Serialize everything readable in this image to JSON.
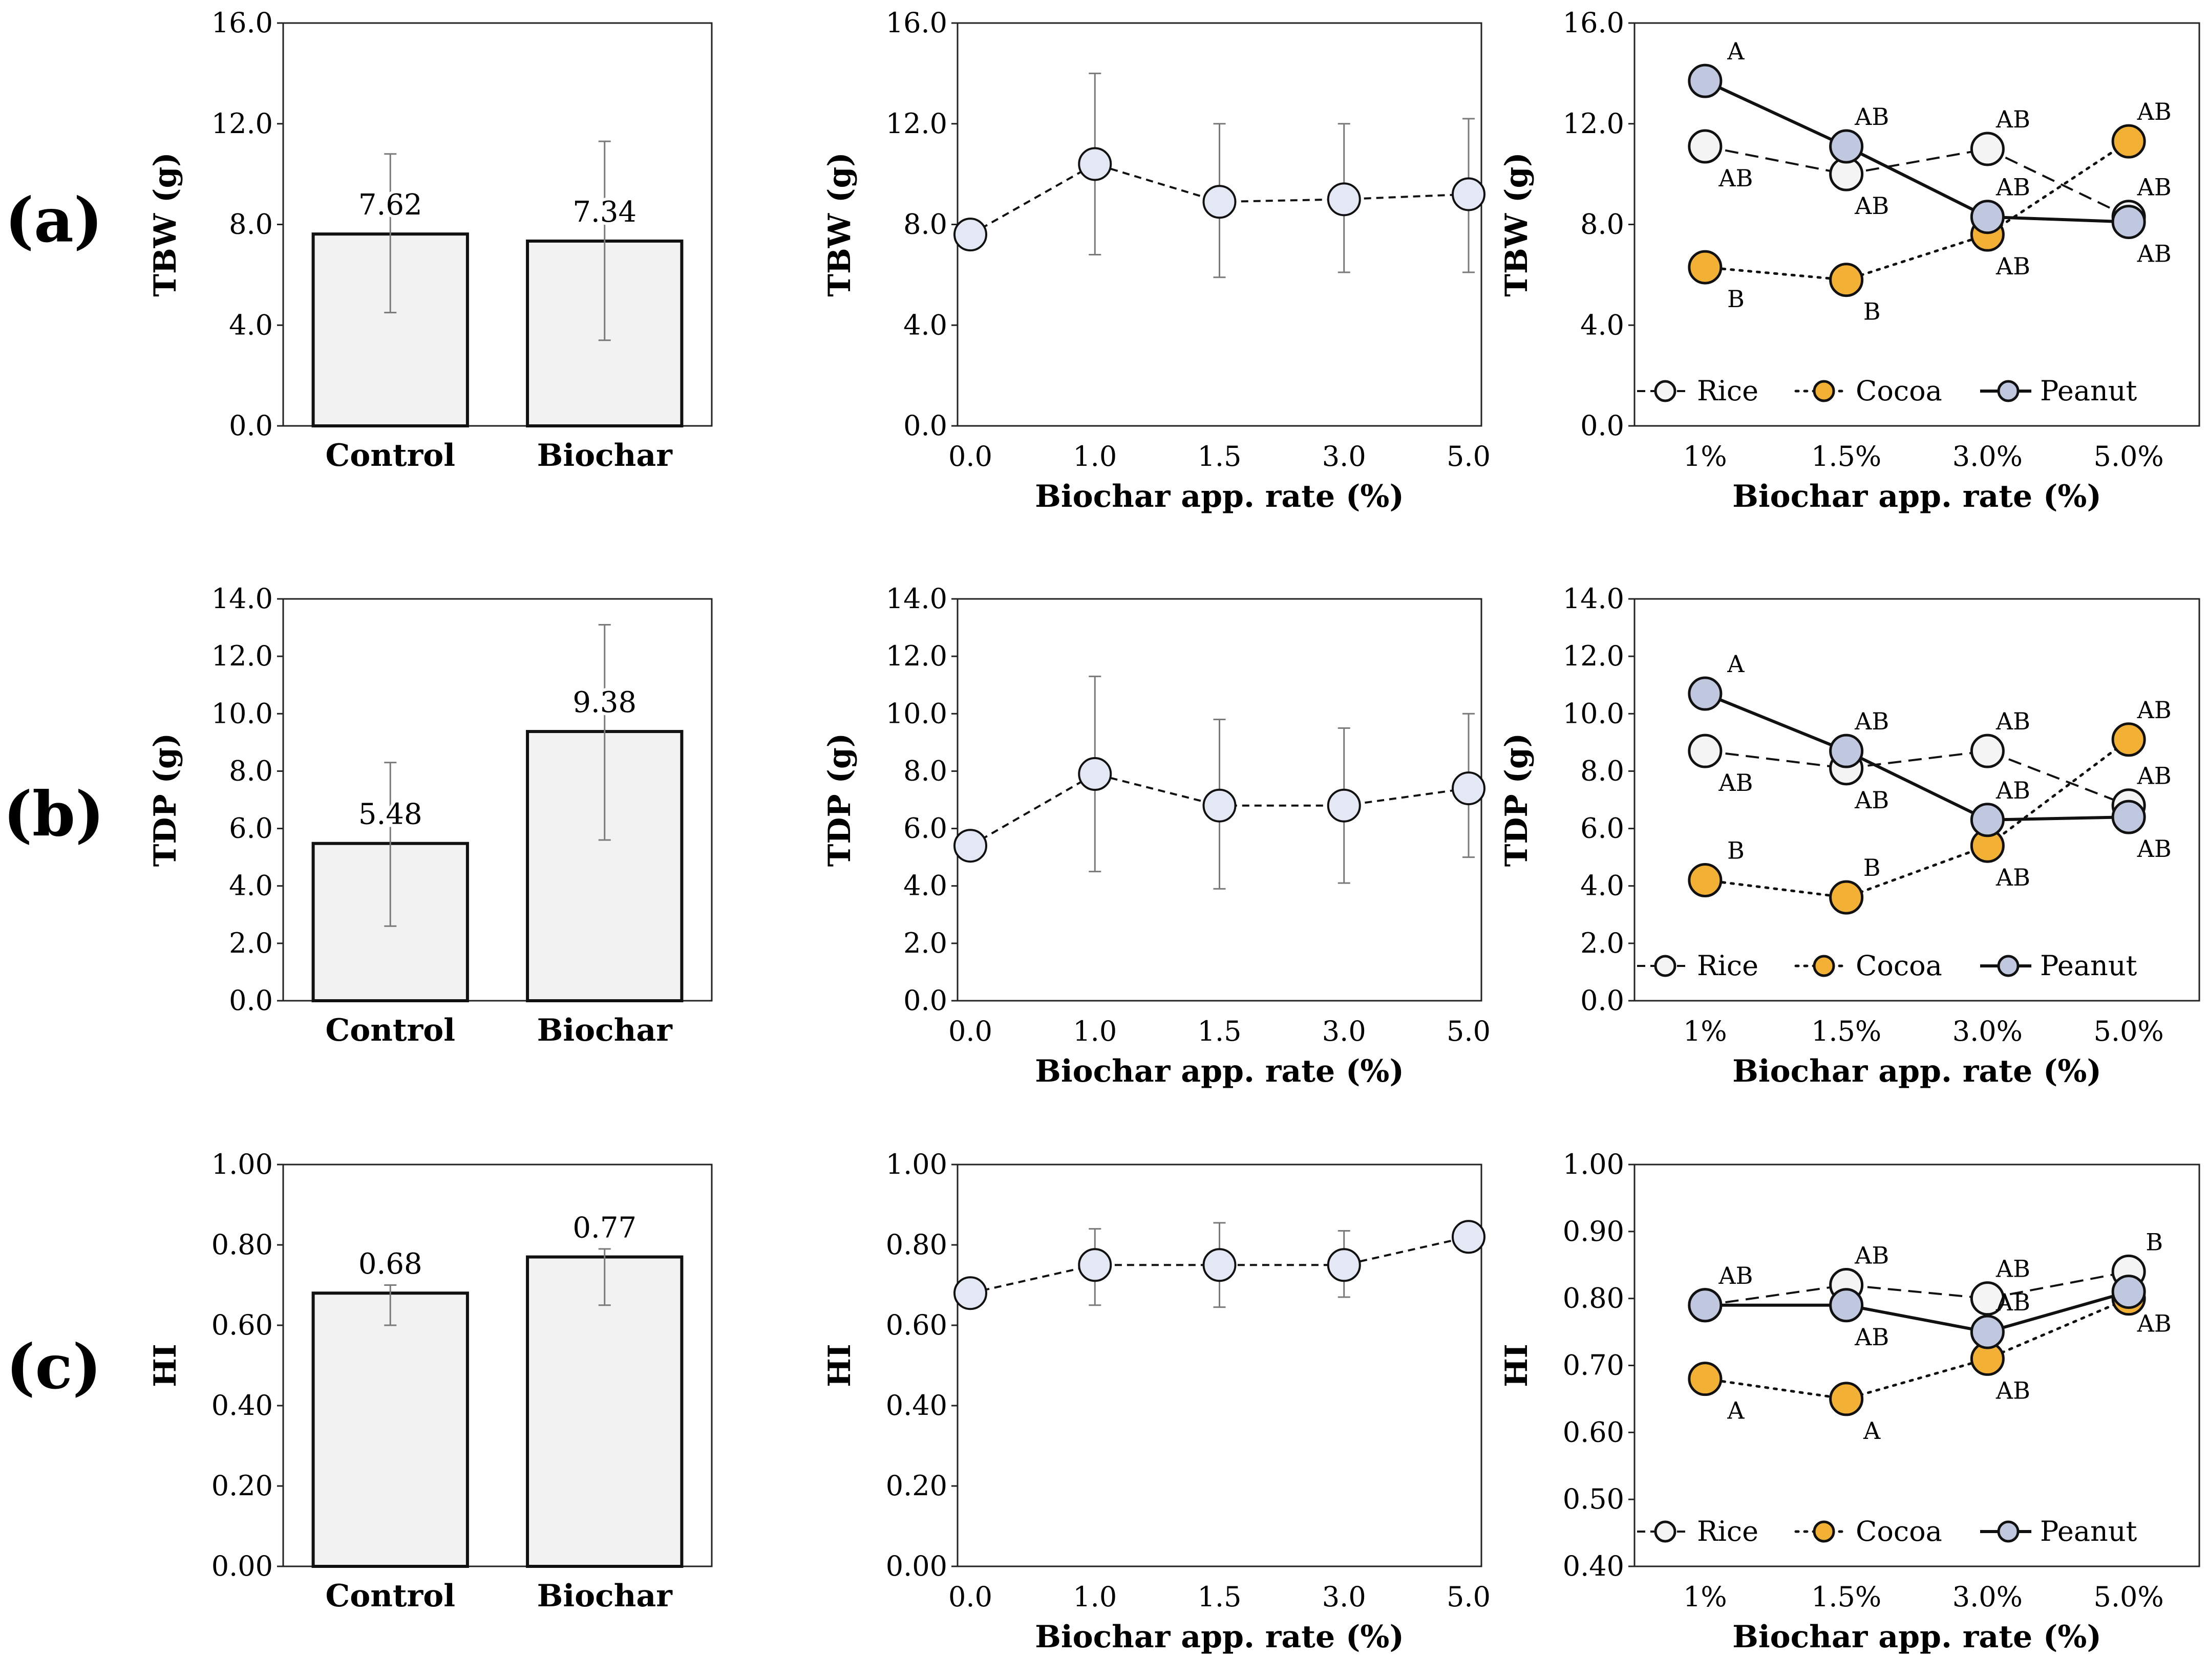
{
  "figure": {
    "rows": [
      {
        "id": "a",
        "label": "(a)"
      },
      {
        "id": "b",
        "label": "(b)"
      },
      {
        "id": "c",
        "label": "(c)"
      }
    ],
    "colors": {
      "bar_fill": "#f2f2f2",
      "rice": "#f4f4f4",
      "cocoa": "#f2b134",
      "peanut": "#c0c8e0",
      "single": "#e4e8f4",
      "err": "#7a7a7a"
    }
  },
  "chart_data": [
    {
      "id": "a-bar",
      "row": "a",
      "type": "bar",
      "ylabel": "TBW (g)",
      "xlabel": "",
      "ylim": [
        0,
        16
      ],
      "yticks": [
        "0.0",
        "4.0",
        "8.0",
        "12.0",
        "16.0"
      ],
      "categories": [
        "Control",
        "Biochar"
      ],
      "values": [
        7.62,
        7.34
      ],
      "value_labels": [
        "7.62",
        "7.34"
      ],
      "err_low": [
        4.5,
        3.4
      ],
      "err_high": [
        10.8,
        11.3
      ]
    },
    {
      "id": "a-line",
      "row": "a",
      "type": "line",
      "ylabel": "TBW (g)",
      "xlabel": "Biochar app. rate (%)",
      "ylim": [
        0,
        16
      ],
      "yticks": [
        "0.0",
        "4.0",
        "8.0",
        "12.0",
        "16.0"
      ],
      "categories": [
        "0.0",
        "1.0",
        "1.5",
        "3.0",
        "5.0"
      ],
      "values": [
        7.6,
        10.4,
        8.9,
        9.0,
        9.2
      ],
      "err_low": [
        7.6,
        6.8,
        5.9,
        6.1,
        6.1
      ],
      "err_high": [
        7.6,
        14.0,
        12.0,
        12.0,
        12.2
      ]
    },
    {
      "id": "a-multi",
      "row": "a",
      "type": "line",
      "ylabel": "TBW (g)",
      "xlabel": "Biochar app. rate (%)",
      "ylim": [
        0,
        16
      ],
      "yticks": [
        "0.0",
        "4.0",
        "8.0",
        "12.0",
        "16.0"
      ],
      "categories": [
        "1%",
        "1.5%",
        "3.0%",
        "5.0%"
      ],
      "series": [
        {
          "name": "Rice",
          "values": [
            11.1,
            10.0,
            11.0,
            8.3
          ],
          "letters": [
            "AB",
            "AB",
            "AB",
            "AB"
          ],
          "letter_pos": [
            "below",
            "below",
            "above",
            "above"
          ]
        },
        {
          "name": "Cocoa",
          "values": [
            6.3,
            5.8,
            7.6,
            11.3
          ],
          "letters": [
            "B",
            "B",
            "AB",
            "AB"
          ],
          "letter_pos": [
            "below",
            "below",
            "below",
            "above"
          ]
        },
        {
          "name": "Peanut",
          "values": [
            13.7,
            11.1,
            8.3,
            8.1
          ],
          "letters": [
            "A",
            "AB",
            "AB",
            "AB"
          ],
          "letter_pos": [
            "above",
            "above",
            "above",
            "below"
          ]
        }
      ],
      "legend": [
        "Rice",
        "Cocoa",
        "Peanut"
      ]
    },
    {
      "id": "b-bar",
      "row": "b",
      "type": "bar",
      "ylabel": "TDP (g)",
      "xlabel": "",
      "ylim": [
        0,
        14
      ],
      "yticks": [
        "0.0",
        "2.0",
        "4.0",
        "6.0",
        "8.0",
        "10.0",
        "12.0",
        "14.0"
      ],
      "categories": [
        "Control",
        "Biochar"
      ],
      "values": [
        5.48,
        9.38
      ],
      "value_labels": [
        "5.48",
        "9.38"
      ],
      "err_low": [
        2.6,
        5.6
      ],
      "err_high": [
        8.3,
        13.1
      ]
    },
    {
      "id": "b-line",
      "row": "b",
      "type": "line",
      "ylabel": "TDP (g)",
      "xlabel": "Biochar app. rate (%)",
      "ylim": [
        0,
        14
      ],
      "yticks": [
        "0.0",
        "2.0",
        "4.0",
        "6.0",
        "8.0",
        "10.0",
        "12.0",
        "14.0"
      ],
      "categories": [
        "0.0",
        "1.0",
        "1.5",
        "3.0",
        "5.0"
      ],
      "values": [
        5.4,
        7.9,
        6.8,
        6.8,
        7.4
      ],
      "err_low": [
        5.4,
        4.5,
        3.9,
        4.1,
        5.0
      ],
      "err_high": [
        5.4,
        11.3,
        9.8,
        9.5,
        10.0
      ]
    },
    {
      "id": "b-multi",
      "row": "b",
      "type": "line",
      "ylabel": "TDP (g)",
      "xlabel": "Biochar app. rate (%)",
      "ylim": [
        0,
        14
      ],
      "yticks": [
        "0.0",
        "2.0",
        "4.0",
        "6.0",
        "8.0",
        "10.0",
        "12.0",
        "14.0"
      ],
      "categories": [
        "1%",
        "1.5%",
        "3.0%",
        "5.0%"
      ],
      "series": [
        {
          "name": "Rice",
          "values": [
            8.7,
            8.1,
            8.7,
            6.8
          ],
          "letters": [
            "AB",
            "AB",
            "AB",
            "AB"
          ],
          "letter_pos": [
            "below",
            "below",
            "above",
            "above"
          ]
        },
        {
          "name": "Cocoa",
          "values": [
            4.2,
            3.6,
            5.4,
            9.1
          ],
          "letters": [
            "B",
            "B",
            "AB",
            "AB"
          ],
          "letter_pos": [
            "above",
            "above",
            "below",
            "above"
          ]
        },
        {
          "name": "Peanut",
          "values": [
            10.7,
            8.7,
            6.3,
            6.4
          ],
          "letters": [
            "A",
            "AB",
            "AB",
            "AB"
          ],
          "letter_pos": [
            "above",
            "above",
            "above",
            "below"
          ]
        }
      ],
      "legend": [
        "Rice",
        "Cocoa",
        "Peanut"
      ]
    },
    {
      "id": "c-bar",
      "row": "c",
      "type": "bar",
      "ylabel": "HI",
      "xlabel": "",
      "ylim": [
        0,
        1
      ],
      "yticks": [
        "0.00",
        "0.20",
        "0.40",
        "0.60",
        "0.80",
        "1.00"
      ],
      "categories": [
        "Control",
        "Biochar"
      ],
      "values": [
        0.68,
        0.77
      ],
      "value_labels": [
        "0.68",
        "0.77"
      ],
      "err_low": [
        0.6,
        0.65
      ],
      "err_high": [
        0.7,
        0.79
      ]
    },
    {
      "id": "c-line",
      "row": "c",
      "type": "line",
      "ylabel": "HI",
      "xlabel": "Biochar app. rate (%)",
      "ylim": [
        0,
        1
      ],
      "yticks": [
        "0.00",
        "0.20",
        "0.40",
        "0.60",
        "0.80",
        "1.00"
      ],
      "categories": [
        "0.0",
        "1.0",
        "1.5",
        "3.0",
        "5.0"
      ],
      "values": [
        0.68,
        0.75,
        0.75,
        0.75,
        0.82
      ],
      "err_low": [
        0.68,
        0.65,
        0.645,
        0.67,
        0.82
      ],
      "err_high": [
        0.68,
        0.84,
        0.855,
        0.835,
        0.82
      ]
    },
    {
      "id": "c-multi",
      "row": "c",
      "type": "line",
      "ylabel": "HI",
      "xlabel": "Biochar app. rate (%)",
      "ylim": [
        0.4,
        1.0
      ],
      "yticks": [
        "0.40",
        "0.50",
        "0.60",
        "0.70",
        "0.80",
        "0.90",
        "1.00"
      ],
      "categories": [
        "1%",
        "1.5%",
        "3.0%",
        "5.0%"
      ],
      "series": [
        {
          "name": "Rice",
          "values": [
            0.79,
            0.82,
            0.8,
            0.84
          ],
          "letters": [
            "AB",
            "AB",
            "AB",
            "B"
          ],
          "letter_pos": [
            "above",
            "above",
            "above",
            "above"
          ]
        },
        {
          "name": "Cocoa",
          "values": [
            0.68,
            0.65,
            0.71,
            0.8
          ],
          "letters": [
            "A",
            "A",
            "AB",
            ""
          ],
          "letter_pos": [
            "below",
            "below",
            "below",
            "below"
          ]
        },
        {
          "name": "Peanut",
          "values": [
            0.79,
            0.79,
            0.75,
            0.81
          ],
          "letters": [
            "",
            "AB",
            "AB",
            "AB"
          ],
          "letter_pos": [
            "below",
            "below",
            "above",
            "below"
          ]
        }
      ],
      "legend": [
        "Rice",
        "Cocoa",
        "Peanut"
      ]
    }
  ]
}
